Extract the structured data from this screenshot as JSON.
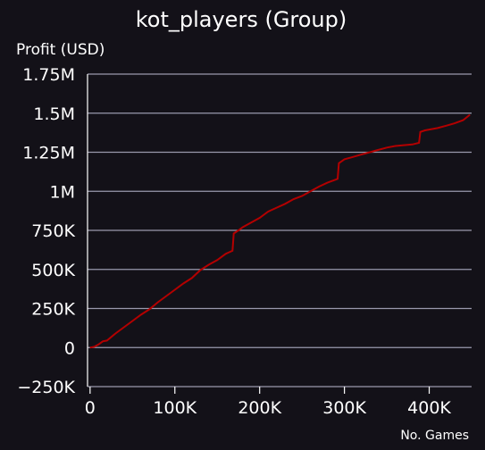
{
  "chart_data": {
    "type": "line",
    "title": "kot_players (Group)",
    "ylabel": "Profit (USD)",
    "xlabel": "No. Games",
    "xlim": [
      -3000,
      450000
    ],
    "ylim": [
      -250000,
      1750000
    ],
    "yticks": [
      {
        "value": -250000,
        "label": "−250K"
      },
      {
        "value": 0,
        "label": "0"
      },
      {
        "value": 250000,
        "label": "250K"
      },
      {
        "value": 500000,
        "label": "500K"
      },
      {
        "value": 750000,
        "label": "750K"
      },
      {
        "value": 1000000,
        "label": "1M"
      },
      {
        "value": 1250000,
        "label": "1.25M"
      },
      {
        "value": 1500000,
        "label": "1.5M"
      },
      {
        "value": 1750000,
        "label": "1.75M"
      }
    ],
    "xticks": [
      {
        "value": 0,
        "label": "0"
      },
      {
        "value": 100000,
        "label": "100K"
      },
      {
        "value": 200000,
        "label": "200K"
      },
      {
        "value": 300000,
        "label": "300K"
      },
      {
        "value": 400000,
        "label": "400K"
      }
    ],
    "grid": true,
    "colors": {
      "background": "#131118",
      "line": "#b30000",
      "grid": "#9a99ad"
    },
    "series": [
      {
        "x": [
          0,
          5000,
          10000,
          15000,
          20000,
          30000,
          40000,
          50000,
          60000,
          70000,
          80000,
          90000,
          100000,
          110000,
          120000,
          130000,
          140000,
          150000,
          160000,
          168000,
          169500,
          175000,
          180000,
          190000,
          200000,
          210000,
          220000,
          230000,
          240000,
          250000,
          260000,
          270000,
          280000,
          290000,
          292000,
          293500,
          300000,
          310000,
          320000,
          330000,
          340000,
          350000,
          360000,
          370000,
          380000,
          388000,
          389500,
          395000,
          400000,
          410000,
          420000,
          430000,
          440000,
          448000
        ],
        "y": [
          0,
          5000,
          20000,
          40000,
          45000,
          90000,
          130000,
          170000,
          210000,
          245000,
          290000,
          330000,
          370000,
          410000,
          445000,
          495000,
          530000,
          560000,
          600000,
          620000,
          730000,
          750000,
          770000,
          800000,
          830000,
          870000,
          895000,
          920000,
          950000,
          970000,
          1000000,
          1030000,
          1055000,
          1075000,
          1080000,
          1180000,
          1205000,
          1220000,
          1235000,
          1250000,
          1265000,
          1280000,
          1290000,
          1295000,
          1300000,
          1310000,
          1380000,
          1390000,
          1395000,
          1405000,
          1420000,
          1435000,
          1455000,
          1490000
        ]
      }
    ]
  }
}
